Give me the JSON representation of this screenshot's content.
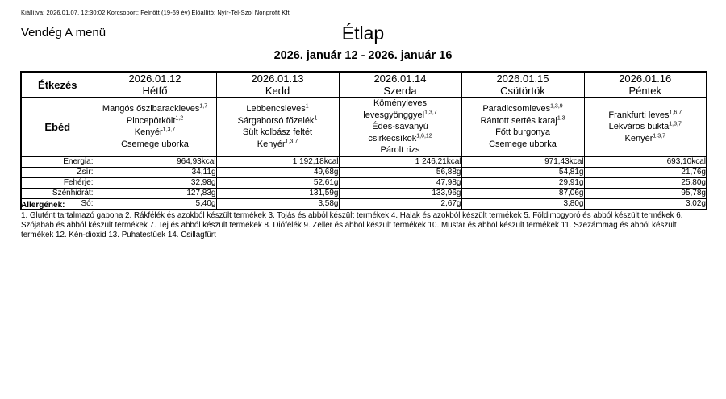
{
  "page": {
    "meta_line": "Kiállítva: 2026.01.07. 12:30:02 Korcsoport: Felnőtt (19-69 év) Előállító: Nyír-Tel-Szol Nonprofit Kft",
    "menu_name": "Vendég A menü",
    "title": "Étlap",
    "date_range": "2026. január 12 - 2026. január 16"
  },
  "table": {
    "meal_column_header": "Étkezés",
    "meal_row_label": "Ebéd",
    "nutrient_labels": [
      "Energia:",
      "Zsír:",
      "Fehérje:",
      "Szénhidrát:",
      "Só:"
    ],
    "days": [
      {
        "date": "2026.01.12",
        "day_name": "Hétfő",
        "items": [
          {
            "name": "Mangós őszibarackleves",
            "allergens": "1,7"
          },
          {
            "name": "Pincepörkölt",
            "allergens": "1,2"
          },
          {
            "name": "Kenyér",
            "allergens": "1,3,7"
          },
          {
            "name": "Csemege uborka",
            "allergens": ""
          }
        ],
        "nutrients": [
          "964,93kcal",
          "34,11g",
          "32,98g",
          "127,83g",
          "5,40g"
        ]
      },
      {
        "date": "2026.01.13",
        "day_name": "Kedd",
        "items": [
          {
            "name": "Lebbencsleves",
            "allergens": "1"
          },
          {
            "name": "Sárgaborsó főzelék",
            "allergens": "1"
          },
          {
            "name": "Sült kolbász feltét",
            "allergens": ""
          },
          {
            "name": "Kenyér",
            "allergens": "1,3,7"
          }
        ],
        "nutrients": [
          "1 192,18kcal",
          "49,68g",
          "52,61g",
          "131,59g",
          "3,58g"
        ]
      },
      {
        "date": "2026.01.14",
        "day_name": "Szerda",
        "items": [
          {
            "name": "Köményleves levesgyönggyel",
            "allergens": "1,3,7"
          },
          {
            "name": "Édes-savanyú csirkecsíkok",
            "allergens": "1,6,12"
          },
          {
            "name": "Párolt rizs",
            "allergens": ""
          }
        ],
        "nutrients": [
          "1 246,21kcal",
          "56,88g",
          "47,98g",
          "133,96g",
          "2,67g"
        ]
      },
      {
        "date": "2026.01.15",
        "day_name": "Csütörtök",
        "items": [
          {
            "name": "Paradicsomleves",
            "allergens": "1,3,9"
          },
          {
            "name": "Rántott sertés karaj",
            "allergens": "1,3"
          },
          {
            "name": "Főtt burgonya",
            "allergens": ""
          },
          {
            "name": "Csemege uborka",
            "allergens": ""
          }
        ],
        "nutrients": [
          "971,43kcal",
          "54,81g",
          "29,91g",
          "87,06g",
          "3,80g"
        ]
      },
      {
        "date": "2026.01.16",
        "day_name": "Péntek",
        "items": [
          {
            "name": "Frankfurti leves",
            "allergens": "1,6,7"
          },
          {
            "name": "Lekváros bukta",
            "allergens": "1,3,7"
          },
          {
            "name": "Kenyér",
            "allergens": "1,3,7"
          }
        ],
        "nutrients": [
          "693,10kcal",
          "21,76g",
          "25,80g",
          "95,78g",
          "3,02g"
        ]
      }
    ]
  },
  "allergens": {
    "heading": "Allergének:",
    "text": "1. Glutént tartalmazó gabona 2. Rákfélék és azokból készült termékek 3. Tojás és abból készült termékek 4. Halak és azokból készült termékek 5. Földimogyoró és abból készült termékek 6. Szójabab és abból készült termékek 7. Tej és abból készült termékek 8. Diófélék 9. Zeller és abból készült termékek 10. Mustár és abból készült termékek 11. Szezámmag és abból készült termékek 12. Kén-dioxid 13. Puhatestűek 14. Csillagfürt"
  }
}
